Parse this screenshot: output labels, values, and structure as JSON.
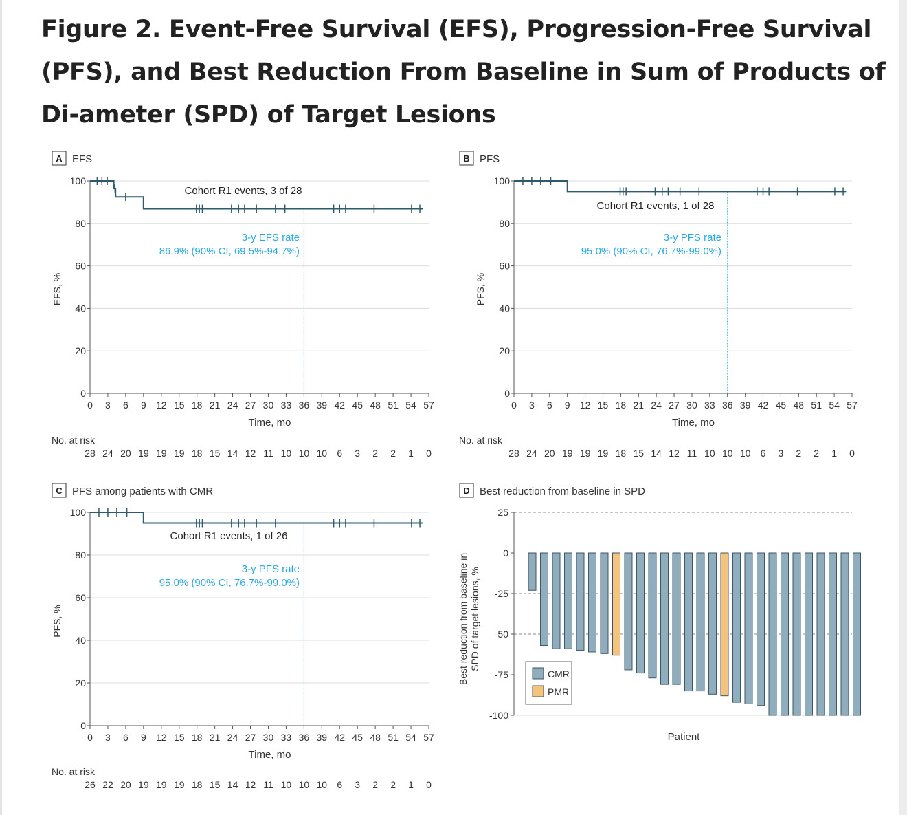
{
  "figure": {
    "title": "Figure 2.  Event-Free Survival (EFS), Progression-Free Survival (PFS), and Best Reduction From Baseline in Sum of Products of Di-ameter (SPD) of Target Lesions"
  },
  "colors": {
    "curve": "#2e5a6b",
    "annotation": "#2aa9df",
    "grid": "#dcdcdc",
    "cmr": "#8fadbd",
    "pmr": "#f6c37c"
  },
  "chart_data": [
    {
      "type": "line",
      "panel_letter": "A",
      "panel_title": "EFS",
      "xlabel": "Time, mo",
      "ylabel": "EFS, %",
      "xlim": [
        0,
        57
      ],
      "ylim": [
        0,
        100
      ],
      "x_ticks": [
        0,
        3,
        6,
        9,
        12,
        15,
        18,
        21,
        24,
        27,
        30,
        33,
        36,
        39,
        42,
        45,
        48,
        51,
        54,
        57
      ],
      "y_ticks": [
        0,
        20,
        40,
        60,
        80,
        100
      ],
      "grid": true,
      "series": [
        {
          "steps": [
            [
              0,
              100
            ],
            [
              4,
              100
            ],
            [
              4,
              96.4
            ],
            [
              4.3,
              96.4
            ],
            [
              4.3,
              92.5
            ],
            [
              9,
              92.5
            ],
            [
              9,
              86.9
            ],
            [
              56,
              86.9
            ]
          ],
          "censored": [
            [
              1.2,
              100
            ],
            [
              2,
              100
            ],
            [
              2.9,
              100
            ],
            [
              4.2,
              96.4
            ],
            [
              6,
              92.5
            ],
            [
              17.9,
              86.9
            ],
            [
              18.4,
              86.9
            ],
            [
              18.9,
              86.9
            ],
            [
              23.8,
              86.9
            ],
            [
              25,
              86.9
            ],
            [
              26,
              86.9
            ],
            [
              28,
              86.9
            ],
            [
              31.2,
              86.9
            ],
            [
              32.8,
              86.9
            ],
            [
              41,
              86.9
            ],
            [
              42,
              86.9
            ],
            [
              43,
              86.9
            ],
            [
              47.8,
              86.9
            ],
            [
              54.1,
              86.9
            ],
            [
              55.5,
              86.9
            ]
          ]
        }
      ],
      "events_text": "Cohort R1 events, 3 of 28",
      "rate_label": "3-y EFS rate",
      "rate_value": "86.9% (90% CI, 69.5%-94.7%)",
      "rate_time": 36,
      "at_risk_label": "No. at risk",
      "at_risk": [
        28,
        24,
        20,
        19,
        19,
        19,
        18,
        15,
        14,
        12,
        11,
        10,
        10,
        10,
        6,
        3,
        2,
        2,
        1,
        0
      ]
    },
    {
      "type": "line",
      "panel_letter": "B",
      "panel_title": "PFS",
      "xlabel": "Time, mo",
      "ylabel": "PFS, %",
      "xlim": [
        0,
        57
      ],
      "ylim": [
        0,
        100
      ],
      "x_ticks": [
        0,
        3,
        6,
        9,
        12,
        15,
        18,
        21,
        24,
        27,
        30,
        33,
        36,
        39,
        42,
        45,
        48,
        51,
        54,
        57
      ],
      "y_ticks": [
        0,
        20,
        40,
        60,
        80,
        100
      ],
      "grid": true,
      "series": [
        {
          "steps": [
            [
              0,
              100
            ],
            [
              9,
              100
            ],
            [
              9,
              95
            ],
            [
              56,
              95
            ]
          ],
          "censored": [
            [
              1.5,
              100
            ],
            [
              3,
              100
            ],
            [
              4.5,
              100
            ],
            [
              6.2,
              100
            ],
            [
              17.9,
              95
            ],
            [
              18.4,
              95
            ],
            [
              18.9,
              95
            ],
            [
              23.8,
              95
            ],
            [
              25,
              95
            ],
            [
              26,
              95
            ],
            [
              28,
              95
            ],
            [
              31.2,
              95
            ],
            [
              41,
              95
            ],
            [
              42,
              95
            ],
            [
              43,
              95
            ],
            [
              47.8,
              95
            ],
            [
              54.1,
              95
            ],
            [
              55.5,
              95
            ]
          ]
        }
      ],
      "events_text": "Cohort R1 events, 1 of 28",
      "rate_label": "3-y PFS rate",
      "rate_value": "95.0% (90% CI, 76.7%-99.0%)",
      "rate_time": 36,
      "at_risk_label": "No. at risk",
      "at_risk": [
        28,
        24,
        20,
        19,
        19,
        19,
        18,
        15,
        14,
        12,
        11,
        10,
        10,
        10,
        6,
        3,
        2,
        2,
        1,
        0
      ]
    },
    {
      "type": "line",
      "panel_letter": "C",
      "panel_title": "PFS among patients with CMR",
      "xlabel": "Time, mo",
      "ylabel": "PFS, %",
      "xlim": [
        0,
        57
      ],
      "ylim": [
        0,
        100
      ],
      "x_ticks": [
        0,
        3,
        6,
        9,
        12,
        15,
        18,
        21,
        24,
        27,
        30,
        33,
        36,
        39,
        42,
        45,
        48,
        51,
        54,
        57
      ],
      "y_ticks": [
        0,
        20,
        40,
        60,
        80,
        100
      ],
      "grid": true,
      "series": [
        {
          "steps": [
            [
              0,
              100
            ],
            [
              9,
              100
            ],
            [
              9,
              95
            ],
            [
              56,
              95
            ]
          ],
          "censored": [
            [
              1.5,
              100
            ],
            [
              3,
              100
            ],
            [
              4.5,
              100
            ],
            [
              6.2,
              100
            ],
            [
              17.9,
              95
            ],
            [
              18.4,
              95
            ],
            [
              18.9,
              95
            ],
            [
              23.8,
              95
            ],
            [
              25,
              95
            ],
            [
              26,
              95
            ],
            [
              28,
              95
            ],
            [
              31.2,
              95
            ],
            [
              41,
              95
            ],
            [
              42,
              95
            ],
            [
              43,
              95
            ],
            [
              47.8,
              95
            ],
            [
              54.1,
              95
            ],
            [
              55.5,
              95
            ]
          ]
        }
      ],
      "events_text": "Cohort R1 events, 1 of 26",
      "rate_label": "3-y PFS rate",
      "rate_value": "95.0% (90% CI, 76.7%-99.0%)",
      "rate_time": 36,
      "at_risk_label": "No. at risk",
      "at_risk": [
        26,
        22,
        20,
        19,
        19,
        19,
        18,
        15,
        14,
        12,
        11,
        10,
        10,
        10,
        6,
        3,
        2,
        2,
        1,
        0
      ]
    },
    {
      "type": "bar",
      "panel_letter": "D",
      "panel_title": "Best reduction from baseline in SPD",
      "xlabel": "Patient",
      "ylabel_lines": [
        "Best reduction from baseline in",
        "SPD of target lesions, %"
      ],
      "ylim": [
        -100,
        25
      ],
      "y_ticks": [
        25,
        0,
        -25,
        -50,
        -75,
        -100
      ],
      "dashed_gridlines": [
        25,
        -25,
        -50
      ],
      "legend": [
        {
          "key": "CMR",
          "label": "CMR"
        },
        {
          "key": "PMR",
          "label": "PMR"
        }
      ],
      "legend_position": "bottom-left",
      "values": [
        -23,
        -57,
        -59,
        -59,
        -60,
        -61,
        -62,
        -63,
        -72,
        -74,
        -77,
        -81,
        -81,
        -85,
        -85,
        -87,
        -88,
        -92,
        -93,
        -94,
        -100,
        -100,
        -100,
        -100,
        -100,
        -100,
        -100,
        -100
      ],
      "response": [
        "CMR",
        "CMR",
        "CMR",
        "CMR",
        "CMR",
        "CMR",
        "CMR",
        "PMR",
        "CMR",
        "CMR",
        "CMR",
        "CMR",
        "CMR",
        "CMR",
        "CMR",
        "CMR",
        "PMR",
        "CMR",
        "CMR",
        "CMR",
        "CMR",
        "CMR",
        "CMR",
        "CMR",
        "CMR",
        "CMR",
        "CMR",
        "CMR"
      ]
    }
  ]
}
